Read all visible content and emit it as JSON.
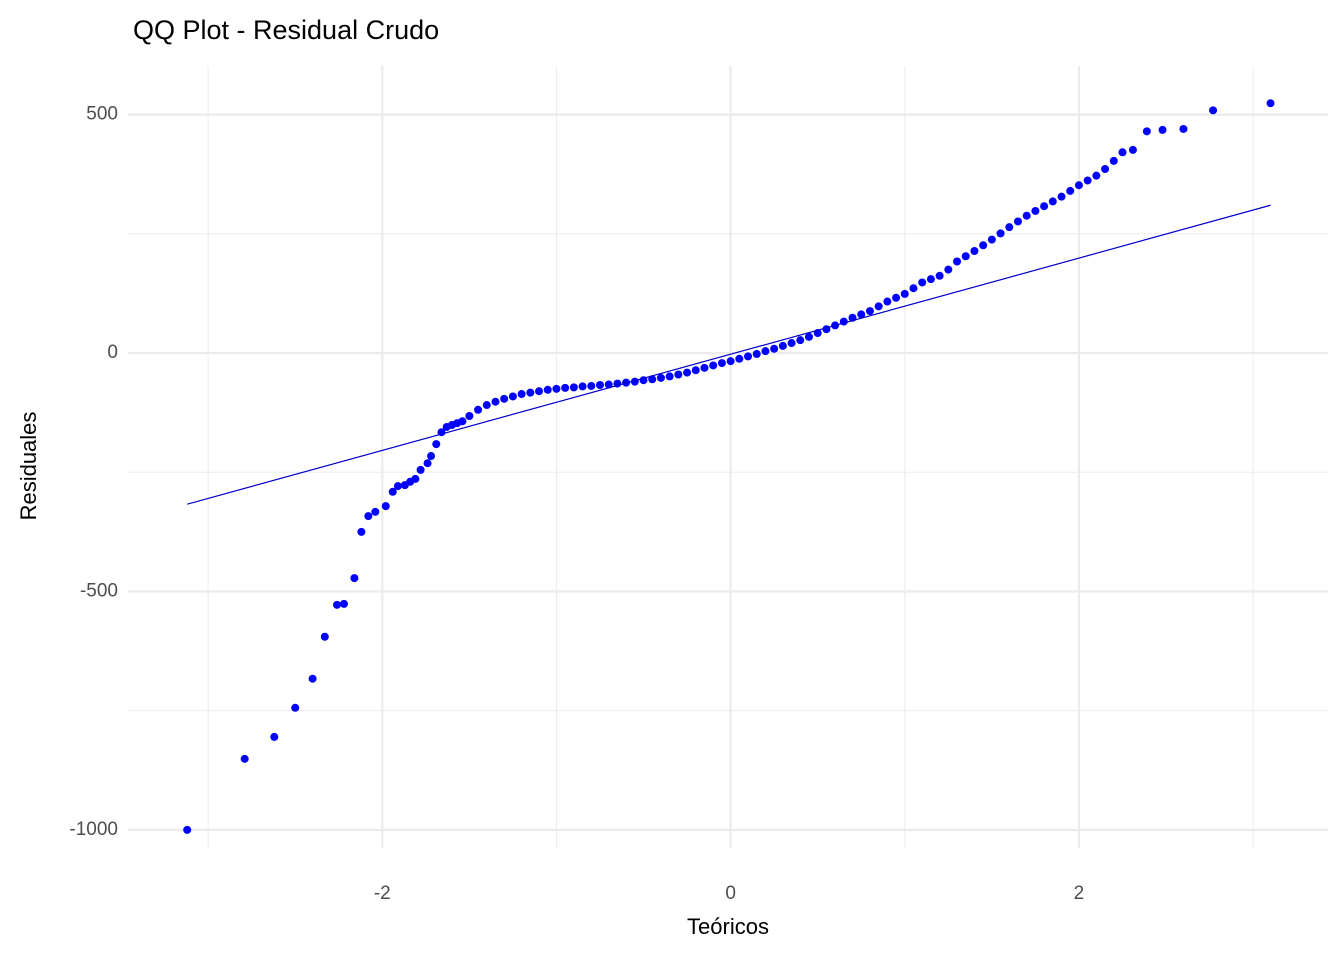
{
  "chart_data": {
    "type": "scatter",
    "title": "QQ Plot - Residual Crudo",
    "x_label": "Teóricos",
    "y_label": "Residuales",
    "xlim": [
      -3.46,
      3.43
    ],
    "ylim": [
      -1038,
      602
    ],
    "xticks": [
      -2,
      0,
      2
    ],
    "yticks": [
      -1000,
      -500,
      0,
      500
    ],
    "x_minor_ticks": [
      -3,
      -1,
      1,
      3
    ],
    "y_minor_ticks": [
      -750,
      -250,
      250
    ],
    "grid": true,
    "color": "#0000ff",
    "x": [
      -3.12,
      -2.79,
      -2.62,
      -2.5,
      -2.4,
      -2.33,
      -2.26,
      -2.22,
      -2.16,
      -2.12,
      -2.08,
      -2.04,
      -1.98,
      -1.94,
      -1.91,
      -1.87,
      -1.84,
      -1.81,
      -1.78,
      -1.74,
      -1.72,
      -1.69,
      -1.66,
      -1.63,
      -1.6,
      -1.57,
      -1.54,
      -1.5,
      -1.45,
      -1.4,
      -1.35,
      -1.3,
      -1.25,
      -1.2,
      -1.15,
      -1.1,
      -1.05,
      -1.0,
      -0.95,
      -0.9,
      -0.85,
      -0.8,
      -0.75,
      -0.7,
      -0.65,
      -0.6,
      -0.55,
      -0.5,
      -0.45,
      -0.4,
      -0.35,
      -0.3,
      -0.25,
      -0.2,
      -0.15,
      -0.1,
      -0.05,
      0,
      0.05,
      0.1,
      0.15,
      0.2,
      0.25,
      0.3,
      0.35,
      0.4,
      0.45,
      0.5,
      0.55,
      0.6,
      0.65,
      0.7,
      0.75,
      0.8,
      0.85,
      0.9,
      0.95,
      1.0,
      1.05,
      1.1,
      1.15,
      1.2,
      1.25,
      1.3,
      1.35,
      1.4,
      1.45,
      1.5,
      1.55,
      1.6,
      1.65,
      1.7,
      1.75,
      1.8,
      1.85,
      1.9,
      1.95,
      2.0,
      2.05,
      2.1,
      2.15,
      2.2,
      2.25,
      2.31,
      2.39,
      2.48,
      2.6,
      2.77,
      3.1
    ],
    "y": [
      -1000,
      -851,
      -805,
      -744,
      -683,
      -595,
      -528,
      -526,
      -472,
      -375,
      -342,
      -333,
      -321,
      -291,
      -279,
      -277,
      -270,
      -264,
      -245,
      -231,
      -216,
      -191,
      -166,
      -155,
      -151,
      -147,
      -143,
      -132,
      -119,
      -109,
      -102,
      -96,
      -91,
      -86,
      -83,
      -80,
      -77,
      -75,
      -73,
      -72,
      -70,
      -69,
      -67,
      -66,
      -64,
      -62,
      -60,
      -57,
      -55,
      -52,
      -49,
      -45,
      -41,
      -36,
      -31,
      -26,
      -21,
      -17,
      -12,
      -7,
      -2,
      4,
      9,
      15,
      21,
      27,
      34,
      42,
      50,
      58,
      66,
      74,
      81,
      88,
      98,
      108,
      116,
      124,
      136,
      148,
      155,
      162,
      175,
      192,
      203,
      214,
      226,
      238,
      251,
      264,
      276,
      288,
      298,
      308,
      318,
      328,
      340,
      352,
      362,
      372,
      386,
      403,
      421,
      426,
      465,
      468,
      470,
      509,
      524
    ],
    "line": {
      "x": [
        -3.12,
        3.1
      ],
      "y": [
        -317,
        310
      ],
      "color": "#0000cd"
    }
  }
}
